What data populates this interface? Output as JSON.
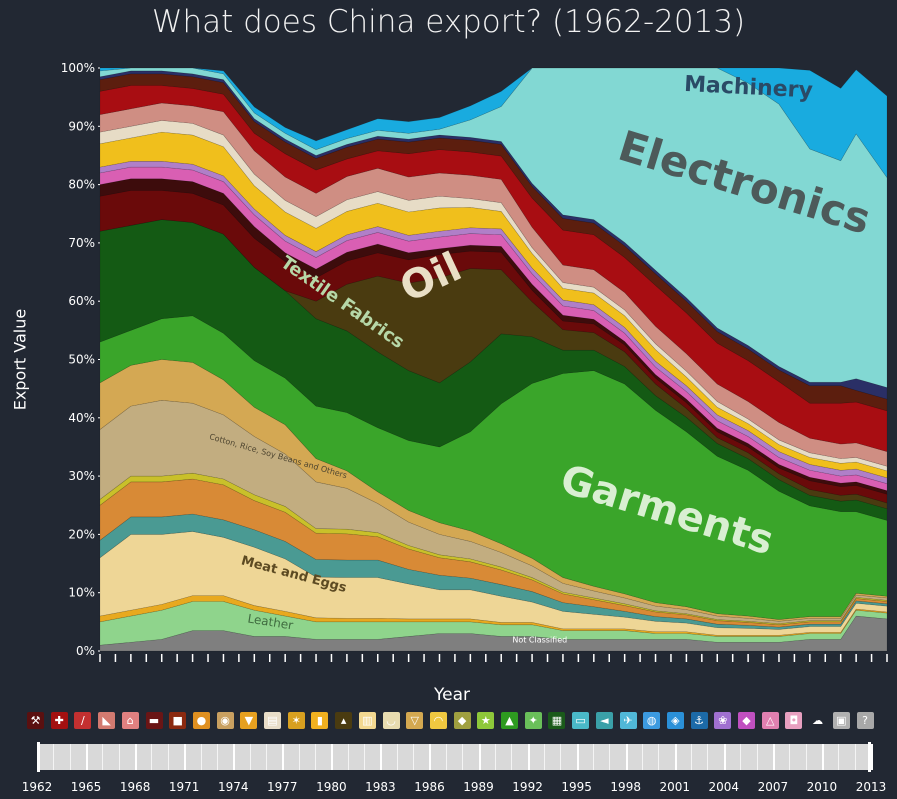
{
  "chart_data": {
    "type": "area",
    "title": "What does China export? (1962-2013)",
    "xlabel": "Year",
    "ylabel": "Export Value",
    "ylim": [
      0,
      100
    ],
    "y_ticks": [
      "0%",
      "10%",
      "20%",
      "30%",
      "40%",
      "50%",
      "60%",
      "70%",
      "80%",
      "90%",
      "100%"
    ],
    "x": [
      1962,
      1964,
      1966,
      1968,
      1970,
      1972,
      1974,
      1976,
      1978,
      1980,
      1982,
      1984,
      1986,
      1988,
      1990,
      1992,
      1994,
      1996,
      1998,
      2000,
      2002,
      2004,
      2006,
      2008,
      2010,
      2011,
      2013
    ],
    "series": [
      {
        "name": "Not Classified",
        "color": "#7f7f7f",
        "values": [
          1,
          1.5,
          2,
          3.5,
          3.5,
          2.5,
          2.5,
          2,
          2,
          2,
          2.5,
          3,
          3,
          2.5,
          2.5,
          2,
          2,
          2,
          2,
          2,
          1.5,
          1.5,
          1.5,
          2,
          2,
          6,
          5.5
        ]
      },
      {
        "name": "Leather",
        "color": "#8fd48c",
        "values": [
          4,
          4.5,
          5,
          5,
          5,
          4.5,
          3.5,
          3,
          3,
          3,
          2.5,
          2,
          2,
          2,
          2,
          1.5,
          1.5,
          1.5,
          1,
          1,
          1,
          1,
          1,
          1,
          1,
          1,
          1
        ]
      },
      {
        "name": "",
        "color": "#e8a91f",
        "values": [
          1,
          1,
          1,
          1,
          1,
          0.8,
          0.8,
          0.7,
          0.6,
          0.6,
          0.5,
          0.5,
          0.5,
          0.4,
          0.4,
          0.3,
          0.3,
          0.3,
          0.3,
          0.3,
          0.2,
          0.2,
          0.2,
          0.2,
          0.2,
          0.2,
          0.2
        ]
      },
      {
        "name": "Meat and Eggs",
        "color": "#eed696",
        "values": [
          10,
          13,
          12,
          11,
          10,
          10,
          9,
          7,
          7,
          7,
          6,
          5,
          5,
          4.5,
          3.5,
          3,
          2.5,
          2,
          1.8,
          1.5,
          1.3,
          1.2,
          1,
          1,
          1,
          1,
          1
        ]
      },
      {
        "name": "",
        "color": "#4a9a93",
        "values": [
          3,
          3,
          3,
          3,
          3,
          3,
          3,
          3,
          3,
          3,
          2.5,
          2.5,
          2,
          2,
          1.8,
          1.5,
          1.3,
          1,
          0.8,
          0.7,
          0.6,
          0.5,
          0.4,
          0.4,
          0.4,
          0.4,
          0.4
        ]
      },
      {
        "name": "",
        "color": "#d88a36",
        "values": [
          6,
          6,
          6,
          6,
          6,
          5,
          5,
          4.5,
          4.5,
          4,
          3.5,
          3,
          2.8,
          2.5,
          2,
          1.5,
          1.2,
          1,
          0.8,
          0.7,
          0.6,
          0.5,
          0.4,
          0.4,
          0.4,
          0.4,
          0.4
        ]
      },
      {
        "name": "",
        "color": "#c9c02a",
        "values": [
          1,
          1,
          1,
          1,
          1,
          1,
          1,
          0.8,
          0.8,
          0.7,
          0.6,
          0.5,
          0.5,
          0.5,
          0.4,
          0.3,
          0.3,
          0.3,
          0.2,
          0.2,
          0.2,
          0.2,
          0.2,
          0.2,
          0.2,
          0.2,
          0.2
        ]
      },
      {
        "name": "Cotton, Rice, Soy Beans and Others",
        "color": "#c2ad80",
        "values": [
          12,
          12,
          13,
          12,
          11,
          10,
          9,
          8,
          7,
          5,
          4,
          3.5,
          3,
          2.5,
          2,
          1.5,
          1.2,
          1,
          0.8,
          0.7,
          0.6,
          0.5,
          0.4,
          0.4,
          0.4,
          0.4,
          0.4
        ]
      },
      {
        "name": "",
        "color": "#d4a853",
        "values": [
          8,
          7,
          7,
          7,
          6,
          5,
          5,
          4,
          3,
          2,
          2,
          2,
          1.8,
          1.5,
          1.3,
          1,
          0.8,
          0.7,
          0.6,
          0.5,
          0.4,
          0.4,
          0.3,
          0.3,
          0.3,
          0.3,
          0.3
        ]
      },
      {
        "name": "Garments",
        "color": "#3aa52a",
        "values": [
          7,
          6,
          7,
          8,
          8,
          8,
          8,
          9,
          10,
          11,
          12,
          13,
          17,
          24,
          30,
          35,
          37,
          36,
          33,
          30,
          27,
          25,
          22,
          19,
          18,
          14,
          13
        ]
      },
      {
        "name": "Textile Fabrics",
        "color": "#145a14",
        "values": [
          19,
          18,
          17,
          16,
          17,
          16,
          15,
          15,
          14,
          13,
          12,
          11,
          12,
          12,
          8,
          4,
          3.5,
          3,
          2.5,
          2.5,
          2.2,
          2,
          2,
          1.8,
          1.8,
          2,
          2
        ]
      },
      {
        "name": "Oil",
        "color": "#4a3b10",
        "values": [
          0,
          0,
          0,
          0,
          0,
          0,
          0,
          3,
          8,
          13,
          15,
          18,
          16,
          11,
          6,
          3.5,
          3,
          2.5,
          2,
          1.5,
          1,
          1,
          1,
          1,
          1,
          1,
          1
        ]
      },
      {
        "name": "",
        "color": "#6a0a0a",
        "values": [
          6,
          6,
          5,
          5,
          5,
          5,
          5,
          4,
          4,
          4,
          4,
          4,
          3,
          3,
          2,
          1.5,
          1.5,
          1.2,
          1,
          1,
          1,
          1,
          1,
          1.5,
          1.5,
          1.5,
          1.5
        ]
      },
      {
        "name": "",
        "color": "#3d0c0c",
        "values": [
          2,
          2,
          2,
          2,
          2,
          2,
          1.5,
          1.5,
          1.5,
          1.5,
          1.2,
          1,
          1,
          1,
          1,
          1,
          0.8,
          0.6,
          0.6,
          0.6,
          0.6,
          0.6,
          0.6,
          0.6,
          0.6,
          0.6,
          0.6
        ]
      },
      {
        "name": "",
        "color": "#d95fb3",
        "values": [
          2,
          2,
          2,
          2,
          2,
          2,
          2,
          2,
          2,
          2,
          2,
          2,
          2,
          2,
          1.8,
          1.6,
          1.5,
          1.4,
          1.3,
          1.3,
          1.3,
          1.2,
          1.2,
          1.2,
          1.2,
          1.2,
          1.2
        ]
      },
      {
        "name": "",
        "color": "#b07fc8",
        "values": [
          1,
          1,
          1,
          1,
          1,
          1,
          1,
          1,
          1,
          1,
          1,
          1,
          1,
          1,
          1,
          1,
          1,
          1,
          1,
          1,
          1,
          1,
          1,
          1,
          1,
          1,
          1
        ]
      },
      {
        "name": "",
        "color": "#f0bf1c",
        "values": [
          4,
          4,
          5,
          5,
          5,
          4,
          4,
          4,
          4,
          4,
          4,
          4,
          3.5,
          3,
          2.5,
          2,
          2,
          2,
          2,
          1.5,
          1.3,
          1.2,
          1.2,
          1.2,
          1.2,
          1.2,
          1.2
        ]
      },
      {
        "name": "",
        "color": "#e7dcc6",
        "values": [
          2,
          2,
          2,
          2,
          2,
          2,
          2,
          2,
          2,
          2,
          2,
          2,
          1.5,
          1.5,
          1,
          1,
          1,
          1,
          1,
          1,
          1,
          0.8,
          0.8,
          0.8,
          0.8,
          0.8,
          0.8
        ]
      },
      {
        "name": "",
        "color": "#cf8e83",
        "values": [
          3,
          3,
          3,
          3,
          4,
          4,
          4,
          4,
          4,
          4,
          4,
          4,
          4,
          4,
          3.5,
          3,
          3,
          3,
          3,
          3,
          3,
          3,
          3,
          2.5,
          2.5,
          2.5,
          2.5
        ]
      },
      {
        "name": "",
        "color": "#a80d12",
        "values": [
          4,
          4,
          3,
          3,
          3,
          3,
          4,
          4,
          3,
          3,
          4,
          4,
          4,
          4,
          5,
          6,
          6,
          6,
          7,
          7,
          7,
          7,
          7,
          6,
          7,
          7,
          7
        ]
      },
      {
        "name": "",
        "color": "#5c1e0e",
        "values": [
          2,
          2,
          2,
          2,
          2,
          2,
          2,
          2,
          2,
          2,
          2,
          2,
          2,
          2,
          2,
          2,
          2,
          2,
          2,
          2,
          2,
          2,
          2,
          3,
          3,
          2,
          2
        ]
      },
      {
        "name": "",
        "color": "#2a2f66",
        "values": [
          0.5,
          0.5,
          0.5,
          0.5,
          0.5,
          0.5,
          0.5,
          0.5,
          0.5,
          0.5,
          0.5,
          0.5,
          0.5,
          0.5,
          0.5,
          0.6,
          0.6,
          0.6,
          0.6,
          0.6,
          0.6,
          0.6,
          0.6,
          0.6,
          0.6,
          2,
          2
        ]
      },
      {
        "name": "Electronics",
        "color": "#82d8d3",
        "values": [
          1,
          1,
          1,
          1,
          1,
          1,
          1,
          1,
          1,
          1,
          1,
          1,
          3,
          6,
          20,
          30,
          33,
          36,
          39,
          43,
          45,
          45,
          45,
          40,
          38,
          42,
          36
        ]
      },
      {
        "name": "Machinery",
        "color": "#19abdf",
        "values": [
          0.5,
          0.5,
          0.5,
          0.5,
          0.5,
          1,
          1,
          1.5,
          1.5,
          2,
          2,
          2,
          2.4,
          2.6,
          2.8,
          3,
          3.5,
          4,
          4.5,
          5.5,
          6.5,
          8.5,
          10.5,
          13.5,
          12.4,
          11,
          14
        ]
      }
    ],
    "labels": {
      "machinery": "Machinery",
      "electronics": "Electronics",
      "oil": "Oil",
      "textile": "Textile Fabrics",
      "garments": "Garments",
      "cotton": "Cotton, Rice, Soy Beans and Others",
      "meat": "Meat and Eggs",
      "leather": "Leather",
      "notclassified": "Not Classified"
    },
    "slider_labels": [
      "1962",
      "1965",
      "1968",
      "1971",
      "1974",
      "1977",
      "1980",
      "1983",
      "1986",
      "1989",
      "1992",
      "1995",
      "1998",
      "2001",
      "2004",
      "2007",
      "2010",
      "2013"
    ]
  },
  "icons": [
    {
      "name": "hammer-icon",
      "color": "#5a1010",
      "glyph": "⚒"
    },
    {
      "name": "cross-icon",
      "color": "#a31010",
      "glyph": "✚"
    },
    {
      "name": "pill-icon",
      "color": "#c33030",
      "glyph": "∕"
    },
    {
      "name": "ruler-icon",
      "color": "#d27a70",
      "glyph": "◣"
    },
    {
      "name": "house-icon",
      "color": "#e08080",
      "glyph": "⌂"
    },
    {
      "name": "anvil-icon",
      "color": "#6a1515",
      "glyph": "▬"
    },
    {
      "name": "boot-icon",
      "color": "#8b2a10",
      "glyph": "■"
    },
    {
      "name": "pot-icon",
      "color": "#e09020",
      "glyph": "●"
    },
    {
      "name": "log-icon",
      "color": "#c9a060",
      "glyph": "◉"
    },
    {
      "name": "shield-icon",
      "color": "#e6a020",
      "glyph": "▼"
    },
    {
      "name": "cloth-icon",
      "color": "#e8ddc8",
      "glyph": "▤"
    },
    {
      "name": "wheat-icon",
      "color": "#d8a020",
      "glyph": "✶"
    },
    {
      "name": "bottle-icon",
      "color": "#f0b020",
      "glyph": "▮"
    },
    {
      "name": "oil-drop-icon",
      "color": "#4a3b10",
      "glyph": "▴"
    },
    {
      "name": "stack-icon",
      "color": "#f3d890",
      "glyph": "▥"
    },
    {
      "name": "bowl-icon",
      "color": "#e8dcb0",
      "glyph": "◡"
    },
    {
      "name": "cup-icon",
      "color": "#d4a850",
      "glyph": "▽"
    },
    {
      "name": "mask-icon",
      "color": "#f0c840",
      "glyph": "◠"
    },
    {
      "name": "leaf-icon",
      "color": "#a0a040",
      "glyph": "◆"
    },
    {
      "name": "star-icon",
      "color": "#8ec83a",
      "glyph": "★"
    },
    {
      "name": "shirt-icon",
      "color": "#2e9a20",
      "glyph": "▲"
    },
    {
      "name": "badge-icon",
      "color": "#6abf5a",
      "glyph": "✦"
    },
    {
      "name": "grid-icon",
      "color": "#1a5a1a",
      "glyph": "▦"
    },
    {
      "name": "monitor-icon",
      "color": "#4ab8c8",
      "glyph": "▭"
    },
    {
      "name": "fish-icon",
      "color": "#3aa0a8",
      "glyph": "◄"
    },
    {
      "name": "plane-icon",
      "color": "#50b8d8",
      "glyph": "✈"
    },
    {
      "name": "molecule-icon",
      "color": "#3c9ae0",
      "glyph": "◍"
    },
    {
      "name": "drop-icon",
      "color": "#2a90d8",
      "glyph": "◈"
    },
    {
      "name": "anchor-icon",
      "color": "#1c6aa8",
      "glyph": "⚓"
    },
    {
      "name": "lotus-icon",
      "color": "#a070d0",
      "glyph": "❀"
    },
    {
      "name": "diamond-icon",
      "color": "#c050c0",
      "glyph": "◆"
    },
    {
      "name": "flask-icon",
      "color": "#e080b0",
      "glyph": "△"
    },
    {
      "name": "bag-icon",
      "color": "#e8a0c0",
      "glyph": "◘"
    },
    {
      "name": "cloud-icon",
      "color": "#ffffff",
      "glyph": "☁"
    },
    {
      "name": "box-icon",
      "color": "#b0b0b0",
      "glyph": "▣"
    },
    {
      "name": "unknown-icon",
      "color": "#a8a8a8",
      "glyph": "?"
    }
  ]
}
